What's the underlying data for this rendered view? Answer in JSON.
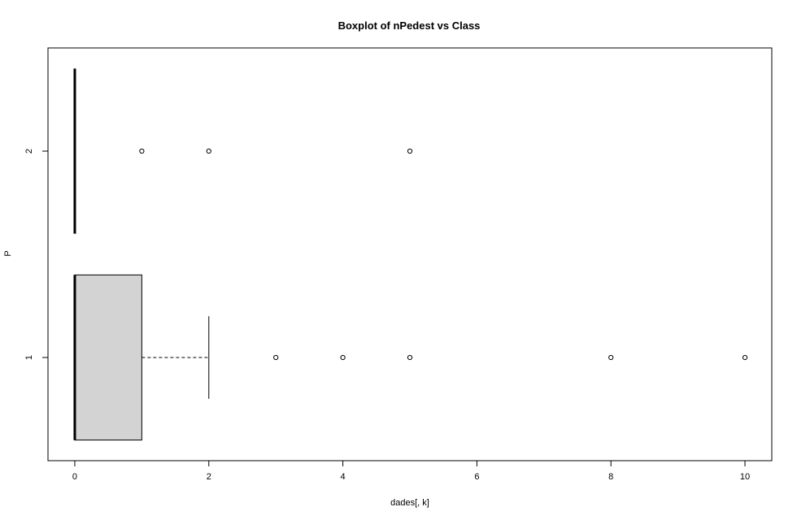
{
  "chart_data": {
    "type": "boxplot",
    "orientation": "horizontal",
    "title": "Boxplot of nPedest vs Class",
    "xlabel": "dades[, k]",
    "ylabel": "P",
    "xlim": [
      -0.4,
      10.4
    ],
    "x_ticks": [
      0,
      2,
      4,
      6,
      8,
      10
    ],
    "x_tick_labels": [
      "0",
      "2",
      "4",
      "6",
      "8",
      "10"
    ],
    "grid": false,
    "box_color": "#d3d3d3",
    "groups": [
      {
        "name": "1",
        "label": "1",
        "whisker_low": 0,
        "q1": 0,
        "median": 0,
        "q3": 1,
        "whisker_high": 2,
        "outliers": [
          3,
          4,
          5,
          8,
          10
        ]
      },
      {
        "name": "2",
        "label": "2",
        "whisker_low": 0,
        "q1": 0,
        "median": 0,
        "q3": 0,
        "whisker_high": 0,
        "outliers": [
          1,
          2,
          5
        ]
      }
    ]
  }
}
